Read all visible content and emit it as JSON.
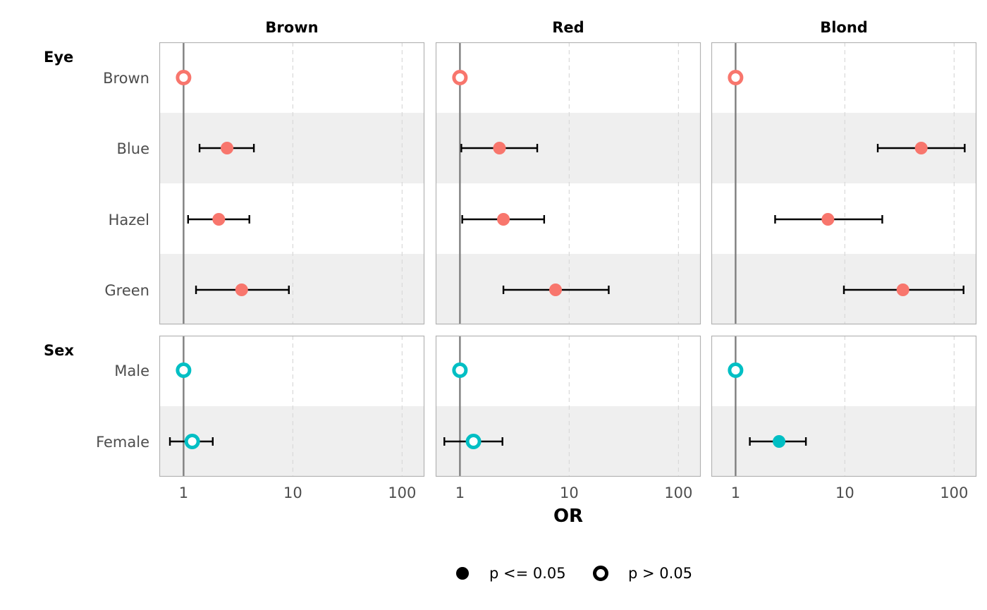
{
  "chart_data": {
    "type": "scatter",
    "xlabel": "OR",
    "x_scale": "log",
    "xlim": [
      0.6,
      160
    ],
    "x_ticks": [
      1,
      10,
      100
    ],
    "x_tick_labels": [
      "1",
      "10",
      "100"
    ],
    "reference_line": 1,
    "grid": "vertical-dashed",
    "facets": [
      "Brown",
      "Red",
      "Blond"
    ],
    "groups": [
      {
        "name": "Eye",
        "color": "#F8766D",
        "rows": [
          "Brown",
          "Blue",
          "Hazel",
          "Green"
        ]
      },
      {
        "name": "Sex",
        "color": "#00BFC4",
        "rows": [
          "Male",
          "Female"
        ]
      }
    ],
    "points": [
      {
        "facet": "Brown",
        "group": "Eye",
        "term": "Brown",
        "or": 1,
        "lo": null,
        "hi": null,
        "significant": false
      },
      {
        "facet": "Brown",
        "group": "Eye",
        "term": "Blue",
        "or": 2.5,
        "lo": 1.4,
        "hi": 4.4,
        "significant": true
      },
      {
        "facet": "Brown",
        "group": "Eye",
        "term": "Hazel",
        "or": 2.1,
        "lo": 1.1,
        "hi": 4.0,
        "significant": true
      },
      {
        "facet": "Brown",
        "group": "Eye",
        "term": "Green",
        "or": 3.4,
        "lo": 1.3,
        "hi": 9.2,
        "significant": true
      },
      {
        "facet": "Brown",
        "group": "Sex",
        "term": "Male",
        "or": 1,
        "lo": null,
        "hi": null,
        "significant": false
      },
      {
        "facet": "Brown",
        "group": "Sex",
        "term": "Female",
        "or": 1.2,
        "lo": 0.75,
        "hi": 1.85,
        "significant": false
      },
      {
        "facet": "Red",
        "group": "Eye",
        "term": "Brown",
        "or": 1,
        "lo": null,
        "hi": null,
        "significant": false
      },
      {
        "facet": "Red",
        "group": "Eye",
        "term": "Blue",
        "or": 2.3,
        "lo": 1.03,
        "hi": 5.1,
        "significant": true
      },
      {
        "facet": "Red",
        "group": "Eye",
        "term": "Hazel",
        "or": 2.5,
        "lo": 1.05,
        "hi": 5.9,
        "significant": true
      },
      {
        "facet": "Red",
        "group": "Eye",
        "term": "Green",
        "or": 7.5,
        "lo": 2.5,
        "hi": 23,
        "significant": true
      },
      {
        "facet": "Red",
        "group": "Sex",
        "term": "Male",
        "or": 1,
        "lo": null,
        "hi": null,
        "significant": false
      },
      {
        "facet": "Red",
        "group": "Sex",
        "term": "Female",
        "or": 1.33,
        "lo": 0.72,
        "hi": 2.45,
        "significant": false
      },
      {
        "facet": "Blond",
        "group": "Eye",
        "term": "Brown",
        "or": 1,
        "lo": null,
        "hi": null,
        "significant": false
      },
      {
        "facet": "Blond",
        "group": "Eye",
        "term": "Blue",
        "or": 50,
        "lo": 20,
        "hi": 125,
        "significant": true
      },
      {
        "facet": "Blond",
        "group": "Eye",
        "term": "Hazel",
        "or": 7,
        "lo": 2.3,
        "hi": 22,
        "significant": true
      },
      {
        "facet": "Blond",
        "group": "Eye",
        "term": "Green",
        "or": 34,
        "lo": 9.8,
        "hi": 122,
        "significant": true
      },
      {
        "facet": "Blond",
        "group": "Sex",
        "term": "Male",
        "or": 1,
        "lo": null,
        "hi": null,
        "significant": false
      },
      {
        "facet": "Blond",
        "group": "Sex",
        "term": "Female",
        "or": 2.5,
        "lo": 1.35,
        "hi": 4.4,
        "significant": true
      }
    ],
    "legend": {
      "placement": "bottom",
      "entries": [
        {
          "label": "p <= 0.05",
          "shape": "filled-circle"
        },
        {
          "label": "p > 0.05",
          "shape": "open-circle"
        }
      ]
    },
    "colors": {
      "band": "#EFEFEF",
      "panel_border": "#B3B3B3",
      "reference_line": "#7F7F7F",
      "grid": "#D9D9D9",
      "errorbar": "#000000"
    }
  }
}
